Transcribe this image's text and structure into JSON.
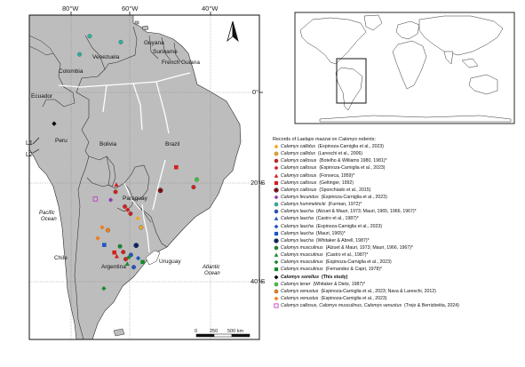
{
  "axis": {
    "lon_labels": [
      "80°W",
      "60°W",
      "40°W"
    ],
    "lat_labels": [
      "0°",
      "20°S",
      "40°S"
    ]
  },
  "countries": {
    "guyana": "Guyana",
    "suriname": "Suriname",
    "french_guiana": "French Guiana",
    "venezuela": "Venezuela",
    "colombia": "Colombia",
    "ecuador": "Ecuador",
    "peru": "Peru",
    "brazil": "Brazil",
    "bolivia": "Bolivia",
    "paraguay": "Paraguay",
    "chile": "Chile",
    "argentina": "Argentina",
    "uruguay": "Uruguay"
  },
  "oceans": {
    "pacific_1": "Pacific",
    "pacific_2": "Ocean",
    "atlantic_1": "Atlantic",
    "atlantic_2": "Ocean"
  },
  "line_labels": {
    "l1": "L1",
    "l2": "L2"
  },
  "scale_bar": {
    "labels": [
      "0",
      "250",
      "500 km"
    ]
  },
  "colors": {
    "land": "#bdbdbd",
    "water": "#ffffff",
    "border": "#2b2b2b",
    "world_land": "#ffffff"
  },
  "north_arrow": "north-arrow-icon",
  "legend": {
    "title_prefix": "Records of ",
    "title_genus_1": "Laelaps mazzai",
    "title_mid": " on ",
    "title_genus_2": "Calomys",
    "title_suffix": " rodents:",
    "entries": [
      {
        "species": "Calomys callidus",
        "source": "(Espinoza-Carniglia et al., 2023)",
        "symbol": "diamond",
        "color": "#f2a623"
      },
      {
        "species": "Calomys callidus",
        "source": "(Lareschi et al., 2006)",
        "symbol": "circle",
        "color": "#f2a623"
      },
      {
        "species": "Calomys callosus",
        "source": "(Botelho & Williams 1980, 1981)*",
        "symbol": "circle",
        "color": "#d42020"
      },
      {
        "species": "Calomys callosus",
        "source": "(Espinoza-Carniglia et al., 2023)",
        "symbol": "diamond",
        "color": "#d42020"
      },
      {
        "species": "Calomys callosus",
        "source": "(Fonseca, 1959)*",
        "symbol": "triangle",
        "color": "#d42020"
      },
      {
        "species": "Calomys callosus",
        "source": "(Geltinger, 1992)",
        "symbol": "square",
        "color": "#d42020"
      },
      {
        "species": "Calomys callosus",
        "source": "(Sponchiado et al., 2015)",
        "symbol": "ringdot",
        "color": "#b0121a"
      },
      {
        "species": "Calomys fecundus",
        "source": "(Espinoza-Carniglia et al., 2023)",
        "symbol": "diamond",
        "color": "#8e3fb0"
      },
      {
        "species": "Calomys hummelincki",
        "source": "(Furman, 1972)*",
        "symbol": "circle",
        "color": "#2bb5a0"
      },
      {
        "species": "Calomys laucha",
        "source": "(Alzuet & Mauri, 1973; Mauri, 1965, 1966, 1967)*",
        "symbol": "circle",
        "color": "#1f56c4"
      },
      {
        "species": "Calomys laucha",
        "source": "(Castro et al., 1987)*",
        "symbol": "triangle",
        "color": "#1f56c4"
      },
      {
        "species": "Calomys laucha",
        "source": "(Espinoza-Carniglia et al., 2023)",
        "symbol": "diamond",
        "color": "#1f56c4"
      },
      {
        "species": "Calomys laucha",
        "source": "(Mauri, 1965)*",
        "symbol": "square",
        "color": "#1f56c4"
      },
      {
        "species": "Calomys laucha",
        "source": "(Whitaker & Abrell, 1987)*",
        "symbol": "ringdot",
        "color": "#14318a"
      },
      {
        "species": "Calomys musculinus",
        "source": "(Alzuet & Mauri, 1973; Mauri, 1966, 1967)*",
        "symbol": "circle",
        "color": "#1a8a2e"
      },
      {
        "species": "Calomys musculinus",
        "source": "(Castro et al., 1987)*",
        "symbol": "triangle",
        "color": "#1a8a2e"
      },
      {
        "species": "Calomys musculinus",
        "source": "(Espinoza-Carniglia et al., 2023)",
        "symbol": "diamond",
        "color": "#1a8a2e"
      },
      {
        "species": "Calomys musculinus",
        "source": "(Fernandez & Capri, 1978)*",
        "symbol": "square",
        "color": "#1a8a2e"
      },
      {
        "species": "Calomys sorellus",
        "source": "(This study)",
        "symbol": "diamond",
        "color": "#000000",
        "bold": true
      },
      {
        "species": "Calomys tener",
        "source": "(Whitaker & Dietz, 1987)*",
        "symbol": "circle",
        "color": "#3fc43f"
      },
      {
        "species": "Calomys venustus",
        "source": "(Espinoza-Carniglia et al., 2023; Nava & Lareschi, 2012)",
        "symbol": "circle",
        "color": "#ef7d1a"
      },
      {
        "species": "Calomys venustus",
        "source": "(Espinoza-Carniglia et al., 2023)",
        "symbol": "diamond",
        "color": "#ef7d1a"
      },
      {
        "species": "Calomys callosus, Calomys musculinus, Calomys venustus",
        "source": "(Trejo & Berrizbeitia, 2024)",
        "symbol": "square-open",
        "color": "#c23fc2"
      }
    ]
  },
  "map_points": [
    {
      "symbol": "diamond",
      "color": "#000000",
      "lon": -78.7,
      "lat": -6.6
    },
    {
      "symbol": "circle",
      "color": "#2bb5a0",
      "lon": -69.9,
      "lat": 12.4
    },
    {
      "symbol": "circle",
      "color": "#2bb5a0",
      "lon": -62.2,
      "lat": 11.1
    },
    {
      "symbol": "circle",
      "color": "#2bb5a0",
      "lon": -72.4,
      "lat": 8.4
    },
    {
      "symbol": "square",
      "color": "#d42020",
      "lon": -48.5,
      "lat": -15.8
    },
    {
      "symbol": "circle",
      "color": "#3fc43f",
      "lon": -43.4,
      "lat": -18.4
    },
    {
      "symbol": "circle",
      "color": "#d42020",
      "lon": -44.2,
      "lat": -20.0
    },
    {
      "symbol": "ringdot",
      "color": "#b0121a",
      "lon": -52.4,
      "lat": -20.7
    },
    {
      "symbol": "triangle",
      "color": "#d42020",
      "lon": -63.3,
      "lat": -19.5
    },
    {
      "symbol": "circle",
      "color": "#d42020",
      "lon": -63.5,
      "lat": -21.0
    },
    {
      "symbol": "square-open",
      "color": "#c23fc2",
      "lon": -68.5,
      "lat": -22.5
    },
    {
      "symbol": "diamond",
      "color": "#8e3fb0",
      "lon": -64.7,
      "lat": -22.7
    },
    {
      "symbol": "circle",
      "color": "#d42020",
      "lon": -61.2,
      "lat": -24.1
    },
    {
      "symbol": "diamond",
      "color": "#d42020",
      "lon": -60.5,
      "lat": -24.8
    },
    {
      "symbol": "circle",
      "color": "#d42020",
      "lon": -59.8,
      "lat": -25.6
    },
    {
      "symbol": "diamond",
      "color": "#f2a623",
      "lon": -58.0,
      "lat": -26.6
    },
    {
      "symbol": "circle",
      "color": "#f2a623",
      "lon": -57.2,
      "lat": -28.5
    },
    {
      "symbol": "diamond",
      "color": "#ef7d1a",
      "lon": -66.8,
      "lat": -28.5
    },
    {
      "symbol": "circle",
      "color": "#ef7d1a",
      "lon": -65.4,
      "lat": -29.1
    },
    {
      "symbol": "diamond",
      "color": "#ef7d1a",
      "lon": -67.9,
      "lat": -30.8
    },
    {
      "symbol": "square",
      "color": "#1f56c4",
      "lon": -66.3,
      "lat": -32.2
    },
    {
      "symbol": "circle",
      "color": "#1a8a2e",
      "lon": -62.4,
      "lat": -32.5
    },
    {
      "symbol": "circle",
      "color": "#d42020",
      "lon": -61.6,
      "lat": -33.7
    },
    {
      "symbol": "square",
      "color": "#d42020",
      "lon": -63.8,
      "lat": -33.8
    },
    {
      "symbol": "triangle",
      "color": "#d42020",
      "lon": -63.2,
      "lat": -34.6
    },
    {
      "symbol": "circle",
      "color": "#1f56c4",
      "lon": -59.7,
      "lat": -34.3
    },
    {
      "symbol": "ringdot",
      "color": "#14318a",
      "lon": -58.4,
      "lat": -32.3
    },
    {
      "symbol": "circle",
      "color": "#d42020",
      "lon": -61.0,
      "lat": -35.2
    },
    {
      "symbol": "diamond",
      "color": "#1a8a2e",
      "lon": -60.2,
      "lat": -34.8
    },
    {
      "symbol": "diamond",
      "color": "#1f56c4",
      "lon": -57.9,
      "lat": -35.0
    },
    {
      "symbol": "square",
      "color": "#1a8a2e",
      "lon": -56.8,
      "lat": -35.8
    },
    {
      "symbol": "circle",
      "color": "#1f56c4",
      "lon": -59.0,
      "lat": -36.9
    },
    {
      "symbol": "triangle",
      "color": "#1a8a2e",
      "lon": -60.6,
      "lat": -36.2
    },
    {
      "symbol": "diamond",
      "color": "#1a8a2e",
      "lon": -66.4,
      "lat": -41.4
    }
  ]
}
